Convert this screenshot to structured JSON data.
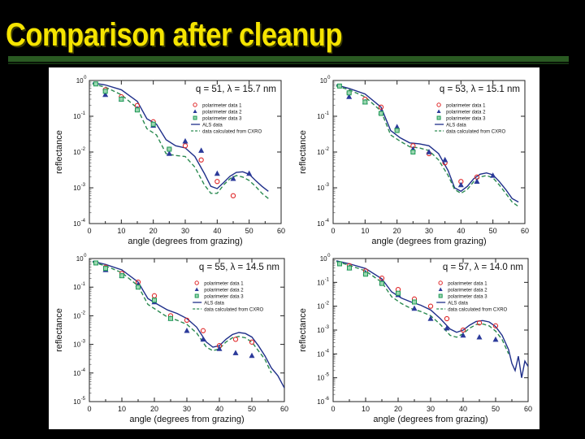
{
  "slide": {
    "title": "Comparison after cleanup"
  },
  "chart_data": [
    {
      "type": "scatter",
      "title": "q = 51,  λ = 15.7 nm",
      "xlabel": "angle (degrees from grazing)",
      "ylabel": "reflectance",
      "xlim": [
        0,
        60
      ],
      "ylim_log10": [
        -4,
        0
      ],
      "x_ticks": [
        "0",
        "10",
        "20",
        "30",
        "40",
        "50",
        "60"
      ],
      "y_ticks": [
        {
          "base": "10",
          "exp": "0"
        },
        {
          "base": "10",
          "exp": "-1"
        },
        {
          "base": "10",
          "exp": "-2"
        },
        {
          "base": "10",
          "exp": "-3"
        },
        {
          "base": "10",
          "exp": "-4"
        }
      ],
      "legend": [
        "polarimeter data 1",
        "polarimeter data 2",
        "polarimeter data 3",
        "ALS data",
        "data calculated from CXRO"
      ],
      "series": [
        {
          "name": "polarimeter data 1",
          "marker": "circle",
          "color": "#e0282a",
          "x": [
            5,
            10,
            15,
            20,
            25,
            30,
            35,
            40,
            45
          ],
          "y": [
            0.55,
            0.35,
            0.2,
            0.07,
            0.012,
            0.015,
            0.006,
            0.0015,
            0.0006
          ]
        },
        {
          "name": "polarimeter data 2",
          "marker": "triangle",
          "color": "#2b3a9a",
          "x": [
            5,
            10,
            15,
            20,
            25,
            30,
            35,
            40,
            45,
            50
          ],
          "y": [
            0.4,
            0.3,
            0.16,
            0.055,
            0.009,
            0.02,
            0.011,
            0.0025,
            0.0018,
            0.0025
          ]
        },
        {
          "name": "polarimeter data 3",
          "marker": "square",
          "color": "#1e9a55",
          "x": [
            2,
            5,
            10,
            15,
            20,
            25
          ],
          "y": [
            0.8,
            0.5,
            0.3,
            0.15,
            0.06,
            0.012
          ]
        },
        {
          "name": "ALS data",
          "line": "solid",
          "color": "#1f2f8a",
          "x": [
            1,
            5,
            10,
            15,
            18,
            21,
            24,
            27,
            30,
            33,
            36,
            38,
            40,
            42,
            44,
            46,
            48,
            50,
            52,
            54,
            56
          ],
          "y": [
            0.85,
            0.75,
            0.55,
            0.26,
            0.085,
            0.06,
            0.022,
            0.015,
            0.013,
            0.0075,
            0.0025,
            0.0011,
            0.00095,
            0.0014,
            0.0021,
            0.0027,
            0.0028,
            0.0024,
            0.0016,
            0.0011,
            0.0008
          ]
        },
        {
          "name": "data calculated from CXRO",
          "line": "dashed",
          "color": "#2a8a50",
          "x": [
            1,
            5,
            10,
            15,
            18,
            21,
            24,
            27,
            30,
            33,
            36,
            38,
            40,
            42,
            44,
            46,
            48,
            50,
            52,
            54,
            56
          ],
          "y": [
            0.8,
            0.65,
            0.4,
            0.17,
            0.045,
            0.03,
            0.009,
            0.008,
            0.0075,
            0.0038,
            0.0012,
            0.0007,
            0.0007,
            0.0012,
            0.0018,
            0.0022,
            0.002,
            0.0016,
            0.0011,
            0.0007,
            0.0005
          ]
        }
      ]
    },
    {
      "type": "scatter",
      "title": "q = 53, λ = 15.1 nm",
      "xlabel": "angle (degrees from grazing)",
      "ylabel": "reflectance",
      "xlim": [
        0,
        60
      ],
      "ylim_log10": [
        -4,
        0
      ],
      "x_ticks": [
        "0",
        "10",
        "20",
        "30",
        "40",
        "50",
        "60"
      ],
      "y_ticks": [
        {
          "base": "10",
          "exp": "0"
        },
        {
          "base": "10",
          "exp": "-1"
        },
        {
          "base": "10",
          "exp": "-2"
        },
        {
          "base": "10",
          "exp": "-3"
        },
        {
          "base": "10",
          "exp": "-4"
        }
      ],
      "legend": [
        "polarimeter data 1",
        "polarimeter data 2",
        "polarimeter data 3",
        "ALS data",
        "data calculated from CXRO"
      ],
      "series": [
        {
          "name": "polarimeter data 1",
          "marker": "circle",
          "color": "#e0282a",
          "x": [
            5,
            10,
            15,
            20,
            25,
            30,
            35,
            40,
            45
          ],
          "y": [
            0.45,
            0.3,
            0.18,
            0.04,
            0.015,
            0.009,
            0.005,
            0.0015,
            0.002
          ]
        },
        {
          "name": "polarimeter data 2",
          "marker": "triangle",
          "color": "#2b3a9a",
          "x": [
            5,
            10,
            15,
            20,
            25,
            30,
            35,
            40,
            45,
            50
          ],
          "y": [
            0.35,
            0.25,
            0.13,
            0.05,
            0.012,
            0.01,
            0.006,
            0.0012,
            0.0015,
            0.0022
          ]
        },
        {
          "name": "polarimeter data 3",
          "marker": "square",
          "color": "#1e9a55",
          "x": [
            2,
            5,
            10,
            15,
            20,
            25
          ],
          "y": [
            0.7,
            0.45,
            0.25,
            0.12,
            0.04,
            0.01
          ]
        },
        {
          "name": "ALS data",
          "line": "solid",
          "color": "#1f2f8a",
          "x": [
            1,
            5,
            10,
            15,
            18,
            21,
            24,
            27,
            30,
            33,
            36,
            38,
            40,
            42,
            44,
            46,
            48,
            50,
            52,
            54,
            56,
            58
          ],
          "y": [
            0.75,
            0.6,
            0.42,
            0.18,
            0.04,
            0.025,
            0.018,
            0.017,
            0.015,
            0.009,
            0.003,
            0.001,
            0.0008,
            0.0011,
            0.0018,
            0.0024,
            0.0026,
            0.0023,
            0.0015,
            0.0009,
            0.0005,
            0.0004
          ]
        },
        {
          "name": "data calculated from CXRO",
          "line": "dashed",
          "color": "#2a8a50",
          "x": [
            1,
            5,
            10,
            15,
            18,
            21,
            24,
            27,
            30,
            33,
            36,
            38,
            40,
            42,
            44,
            46,
            48,
            50,
            52,
            54,
            56,
            58
          ],
          "y": [
            0.7,
            0.55,
            0.35,
            0.14,
            0.03,
            0.02,
            0.014,
            0.013,
            0.011,
            0.006,
            0.0022,
            0.0009,
            0.0007,
            0.0009,
            0.0015,
            0.002,
            0.0022,
            0.0019,
            0.0012,
            0.0007,
            0.0004,
            0.0003
          ]
        }
      ]
    },
    {
      "type": "scatter",
      "title": "q = 55,  λ = 14.5 nm",
      "xlabel": "angle (degrees from grazing)",
      "ylabel": "reflectance",
      "xlim": [
        0,
        60
      ],
      "ylim_log10": [
        -5,
        0
      ],
      "x_ticks": [
        "0",
        "10",
        "20",
        "30",
        "40",
        "50",
        "60"
      ],
      "y_ticks": [
        {
          "base": "10",
          "exp": "0"
        },
        {
          "base": "10",
          "exp": "-1"
        },
        {
          "base": "10",
          "exp": "-2"
        },
        {
          "base": "10",
          "exp": "-3"
        },
        {
          "base": "10",
          "exp": "-4"
        },
        {
          "base": "10",
          "exp": "-5"
        }
      ],
      "legend": [
        "polarimeter data 1",
        "polarimeter data 2",
        "polarimeter data 3",
        "ALS data",
        "data calculated from CXRO"
      ],
      "series": [
        {
          "name": "polarimeter data 1",
          "marker": "circle",
          "color": "#e0282a",
          "x": [
            5,
            10,
            15,
            20,
            25,
            30,
            35,
            40,
            45,
            50
          ],
          "y": [
            0.5,
            0.3,
            0.15,
            0.05,
            0.01,
            0.007,
            0.003,
            0.0009,
            0.0015,
            0.0012
          ]
        },
        {
          "name": "polarimeter data 2",
          "marker": "triangle",
          "color": "#2b3a9a",
          "x": [
            5,
            10,
            15,
            20,
            25,
            30,
            35,
            40,
            45,
            50
          ],
          "y": [
            0.4,
            0.25,
            0.12,
            0.03,
            0.008,
            0.003,
            0.0015,
            0.0007,
            0.0005,
            0.0004
          ]
        },
        {
          "name": "polarimeter data 3",
          "marker": "square",
          "color": "#1e9a55",
          "x": [
            2,
            5,
            10,
            15,
            20,
            25
          ],
          "y": [
            0.7,
            0.45,
            0.25,
            0.1,
            0.035,
            0.008
          ]
        },
        {
          "name": "ALS data",
          "line": "solid",
          "color": "#1f2f8a",
          "x": [
            1,
            5,
            10,
            15,
            18,
            21,
            24,
            27,
            30,
            33,
            36,
            38,
            40,
            42,
            44,
            46,
            48,
            50,
            52,
            54,
            56,
            58,
            60
          ],
          "y": [
            0.8,
            0.62,
            0.4,
            0.15,
            0.04,
            0.025,
            0.016,
            0.012,
            0.008,
            0.004,
            0.0012,
            0.0008,
            0.0009,
            0.0015,
            0.0022,
            0.0026,
            0.0024,
            0.0018,
            0.0009,
            0.0004,
            0.00015,
            8e-05,
            3e-05
          ]
        },
        {
          "name": "data calculated from CXRO",
          "line": "dashed",
          "color": "#2a8a50",
          "x": [
            1,
            5,
            10,
            15,
            18,
            21,
            24,
            27,
            30,
            33,
            36,
            38,
            40,
            42,
            44,
            46,
            48,
            50,
            52,
            54,
            56
          ],
          "y": [
            0.75,
            0.55,
            0.32,
            0.11,
            0.025,
            0.015,
            0.009,
            0.007,
            0.005,
            0.0025,
            0.0008,
            0.0006,
            0.0007,
            0.0012,
            0.0017,
            0.0019,
            0.0017,
            0.0012,
            0.0006,
            0.0003,
            0.0001
          ]
        }
      ]
    },
    {
      "type": "scatter",
      "title": "q = 57,  λ = 14.0 nm",
      "xlabel": "angle (degrees from grazing)",
      "ylabel": "reflectance",
      "xlim": [
        0,
        60
      ],
      "ylim_log10": [
        -6,
        0
      ],
      "x_ticks": [
        "0",
        "10",
        "20",
        "30",
        "40",
        "50",
        "60"
      ],
      "y_ticks": [
        {
          "base": "10",
          "exp": "0"
        },
        {
          "base": "10",
          "exp": "-1"
        },
        {
          "base": "10",
          "exp": "-2"
        },
        {
          "base": "10",
          "exp": "-3"
        },
        {
          "base": "10",
          "exp": "-4"
        },
        {
          "base": "10",
          "exp": "-5"
        },
        {
          "base": "10",
          "exp": "-6"
        }
      ],
      "legend": [
        "polarimeter data 1",
        "polarimeter data 2",
        "polarimeter data 3",
        "ALS data",
        "data calculated from CXRO"
      ],
      "series": [
        {
          "name": "polarimeter data 1",
          "marker": "circle",
          "color": "#e0282a",
          "x": [
            5,
            10,
            15,
            20,
            25,
            30,
            35,
            40,
            45,
            50
          ],
          "y": [
            0.5,
            0.3,
            0.15,
            0.05,
            0.02,
            0.01,
            0.003,
            0.001,
            0.002,
            0.0015
          ]
        },
        {
          "name": "polarimeter data 2",
          "marker": "triangle",
          "color": "#2b3a9a",
          "x": [
            5,
            10,
            15,
            20,
            25,
            30,
            35,
            40,
            45,
            50
          ],
          "y": [
            0.4,
            0.25,
            0.1,
            0.03,
            0.008,
            0.003,
            0.0012,
            0.0006,
            0.0005,
            0.0004
          ]
        },
        {
          "name": "polarimeter data 3",
          "marker": "square",
          "color": "#1e9a55",
          "x": [
            2,
            5,
            10,
            15,
            20,
            25
          ],
          "y": [
            0.6,
            0.4,
            0.22,
            0.09,
            0.035,
            0.015
          ]
        },
        {
          "name": "ALS data",
          "line": "solid",
          "color": "#1f2f8a",
          "x": [
            1,
            5,
            10,
            15,
            18,
            21,
            24,
            27,
            30,
            33,
            36,
            38,
            40,
            42,
            44,
            46,
            48,
            50,
            52,
            54,
            55,
            56,
            57,
            58,
            59,
            60
          ],
          "y": [
            0.8,
            0.6,
            0.38,
            0.14,
            0.04,
            0.022,
            0.015,
            0.011,
            0.007,
            0.003,
            0.0011,
            0.0008,
            0.001,
            0.0016,
            0.0023,
            0.0025,
            0.0022,
            0.0014,
            0.0006,
            0.00015,
            4e-05,
            2e-05,
            8e-05,
            1e-05,
            5e-05,
            3e-05
          ]
        },
        {
          "name": "data calculated from CXRO",
          "line": "dashed",
          "color": "#2a8a50",
          "x": [
            1,
            5,
            10,
            15,
            18,
            21,
            24,
            27,
            30,
            33,
            36,
            38,
            40,
            42,
            44,
            46,
            48,
            50,
            52,
            54
          ],
          "y": [
            0.75,
            0.52,
            0.3,
            0.1,
            0.025,
            0.013,
            0.008,
            0.006,
            0.004,
            0.0017,
            0.0006,
            0.0005,
            0.0007,
            0.0012,
            0.0017,
            0.0018,
            0.0015,
            0.0009,
            0.0004,
            0.0001
          ]
        }
      ]
    }
  ]
}
